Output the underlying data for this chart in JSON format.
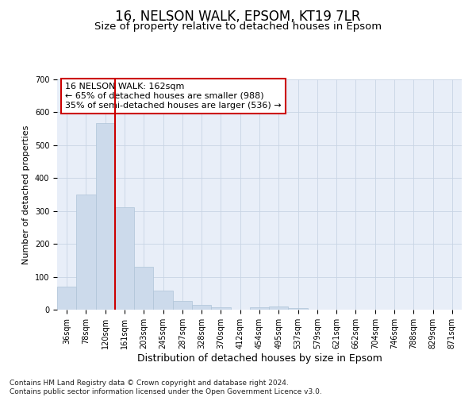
{
  "title_line1": "16, NELSON WALK, EPSOM, KT19 7LR",
  "title_line2": "Size of property relative to detached houses in Epsom",
  "xlabel": "Distribution of detached houses by size in Epsom",
  "ylabel": "Number of detached properties",
  "categories": [
    "36sqm",
    "78sqm",
    "120sqm",
    "161sqm",
    "203sqm",
    "245sqm",
    "287sqm",
    "328sqm",
    "370sqm",
    "412sqm",
    "454sqm",
    "495sqm",
    "537sqm",
    "579sqm",
    "621sqm",
    "662sqm",
    "704sqm",
    "746sqm",
    "788sqm",
    "829sqm",
    "871sqm"
  ],
  "values": [
    70,
    350,
    568,
    312,
    130,
    58,
    27,
    15,
    8,
    0,
    8,
    10,
    5,
    0,
    0,
    0,
    0,
    0,
    0,
    0,
    0
  ],
  "bar_color": "#ccdaeb",
  "bar_edge_color": "#afc4d8",
  "vline_color": "#cc0000",
  "vline_x_idx": 3,
  "annotation_text": "16 NELSON WALK: 162sqm\n← 65% of detached houses are smaller (988)\n35% of semi-detached houses are larger (536) →",
  "annotation_box_color": "white",
  "annotation_box_edge_color": "#cc0000",
  "ylim": [
    0,
    700
  ],
  "yticks": [
    0,
    100,
    200,
    300,
    400,
    500,
    600,
    700
  ],
  "grid_color": "#c8d4e4",
  "bg_color": "#e8eef8",
  "footnote": "Contains HM Land Registry data © Crown copyright and database right 2024.\nContains public sector information licensed under the Open Government Licence v3.0.",
  "title_fontsize": 12,
  "subtitle_fontsize": 9.5,
  "xlabel_fontsize": 9,
  "ylabel_fontsize": 8,
  "tick_fontsize": 7,
  "annot_fontsize": 8,
  "footnote_fontsize": 6.5
}
